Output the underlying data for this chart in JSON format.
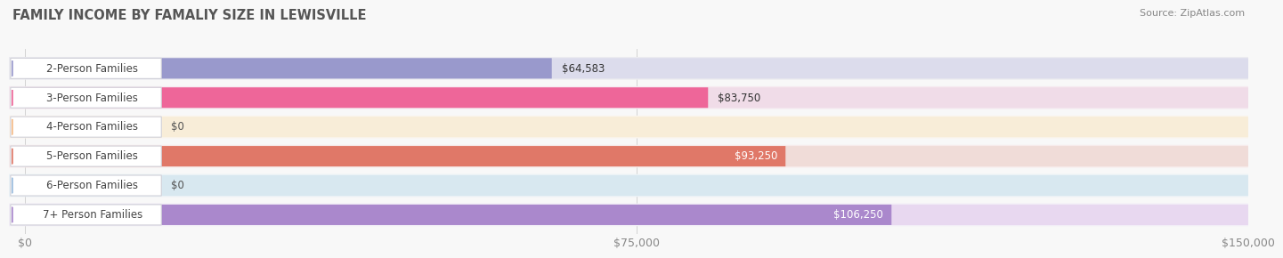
{
  "title": "FAMILY INCOME BY FAMALIY SIZE IN LEWISVILLE",
  "source": "Source: ZipAtlas.com",
  "categories": [
    "2-Person Families",
    "3-Person Families",
    "4-Person Families",
    "5-Person Families",
    "6-Person Families",
    "7+ Person Families"
  ],
  "values": [
    64583,
    83750,
    0,
    93250,
    0,
    106250
  ],
  "bar_colors": [
    "#9999cc",
    "#ee6699",
    "#f5bb88",
    "#e07868",
    "#99bbdd",
    "#aa88cc"
  ],
  "row_bg_colors": [
    "#ebebf0",
    "#f5eaf0",
    "#faf5ee",
    "#f7ecec",
    "#eaf2f7",
    "#f2eef7"
  ],
  "bar_bg_colors": [
    "#dcdcec",
    "#f0dce8",
    "#f8edd8",
    "#f0dcd8",
    "#d8e8f0",
    "#e8d8f0"
  ],
  "value_inside": [
    false,
    false,
    false,
    true,
    false,
    true
  ],
  "xlim": [
    0,
    150000
  ],
  "xticks": [
    0,
    75000,
    150000
  ],
  "xtick_labels": [
    "$0",
    "$75,000",
    "$150,000"
  ],
  "title_fontsize": 10.5,
  "source_fontsize": 8,
  "label_fontsize": 8.5,
  "value_fontsize": 8.5,
  "tick_fontsize": 9,
  "fig_bg": "#f8f8f8"
}
